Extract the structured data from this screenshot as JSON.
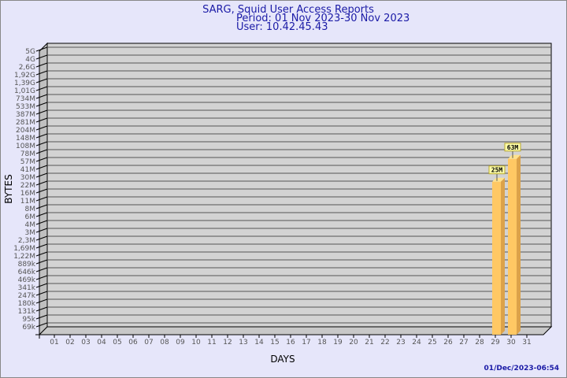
{
  "chart_data": {
    "type": "bar",
    "title": "SARG, Squid User Access Reports",
    "subtitle": [
      "Period: 01 Nov 2023-30 Nov 2023",
      "User: 10.42.45.43"
    ],
    "xlabel": "DAYS",
    "ylabel": "BYTES",
    "y_scale": "log",
    "ylim": [
      69000,
      5000000000
    ],
    "grid": true,
    "categories": [
      "01",
      "02",
      "03",
      "04",
      "05",
      "06",
      "07",
      "08",
      "09",
      "10",
      "11",
      "12",
      "13",
      "14",
      "15",
      "16",
      "17",
      "18",
      "19",
      "20",
      "21",
      "22",
      "23",
      "24",
      "25",
      "26",
      "27",
      "28",
      "29",
      "30",
      "31"
    ],
    "y_tick_labels": [
      "5G",
      "4G",
      "2,6G",
      "1,92G",
      "1,39G",
      "1,01G",
      "734M",
      "533M",
      "387M",
      "281M",
      "204M",
      "148M",
      "108M",
      "78M",
      "57M",
      "41M",
      "30M",
      "22M",
      "16M",
      "11M",
      "8M",
      "6M",
      "4M",
      "3M",
      "2,3M",
      "1,69M",
      "1,22M",
      "889k",
      "646k",
      "469k",
      "341k",
      "247k",
      "180k",
      "131k",
      "95k",
      "69k"
    ],
    "bars": [
      {
        "day": "29",
        "value": 25000000,
        "label": "25M"
      },
      {
        "day": "30",
        "value": 63000000,
        "label": "63M"
      }
    ],
    "colors": {
      "bar_front": "#ffc864",
      "bar_side": "#dca24a",
      "bar_top": "#ffe28c",
      "wall": "#d3d3d3",
      "title": "#1a1aa6",
      "background": "#e6e6fa"
    }
  },
  "footer": {
    "timestamp": "01/Dec/2023-06:54"
  }
}
